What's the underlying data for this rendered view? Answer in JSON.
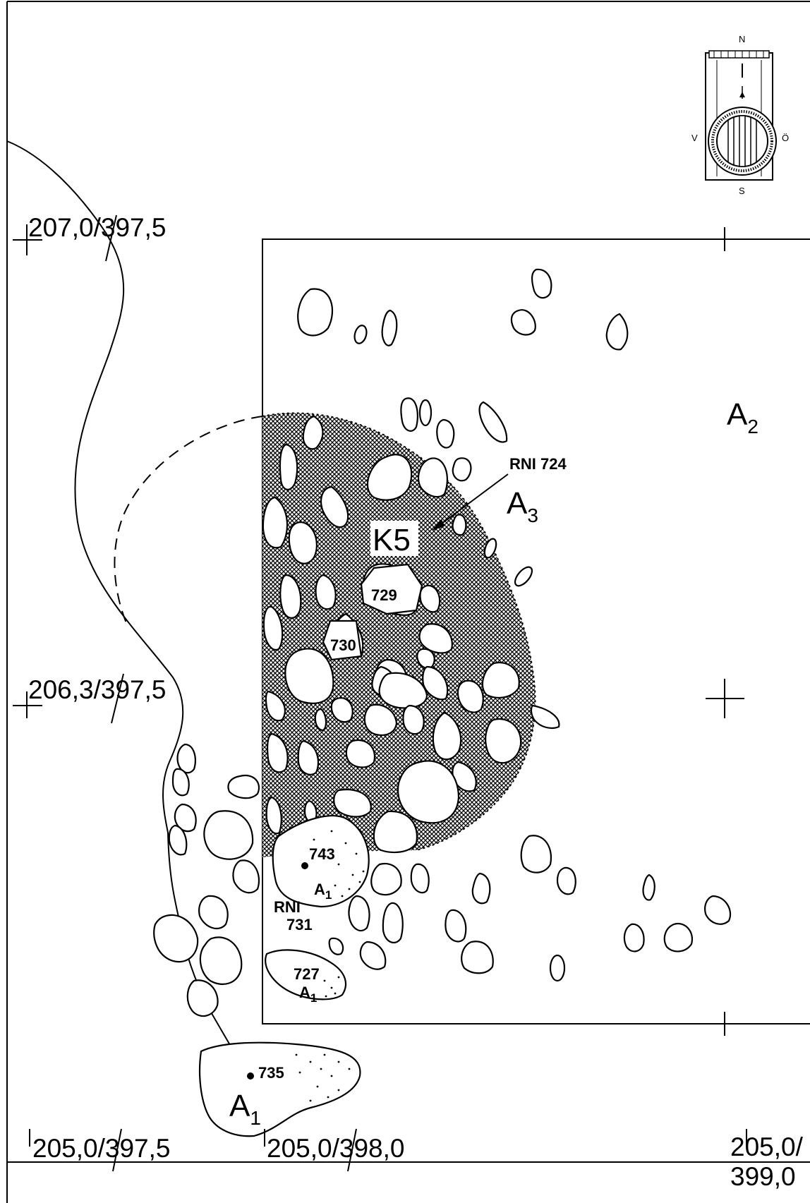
{
  "compass": {
    "north": "N",
    "south": "S",
    "west": "V",
    "east": "Ö"
  },
  "coordinates": {
    "top_left": "207,0/397,5",
    "mid_left": "206,3/397,5",
    "bottom_left": "205,0/397,5",
    "bottom_mid": "205,0/398,0",
    "bottom_right_top": "205,0/",
    "bottom_right_bottom": "399,0"
  },
  "labels": {
    "a2": {
      "main": "A",
      "sub": "2"
    },
    "a3": {
      "main": "A",
      "sub": "3"
    },
    "a1_large": {
      "main": "A",
      "sub": "1"
    },
    "a1_743": {
      "main": "A",
      "sub": "1"
    },
    "a1_727": {
      "main": "A",
      "sub": "1"
    },
    "k5": "K5",
    "rni_724": "RNI 724",
    "rni_731_line1": "RNI",
    "rni_731_line2": "731",
    "stone_729": "729",
    "stone_730": "730",
    "stone_743": "743",
    "stone_727": "727",
    "stone_735": "735"
  }
}
